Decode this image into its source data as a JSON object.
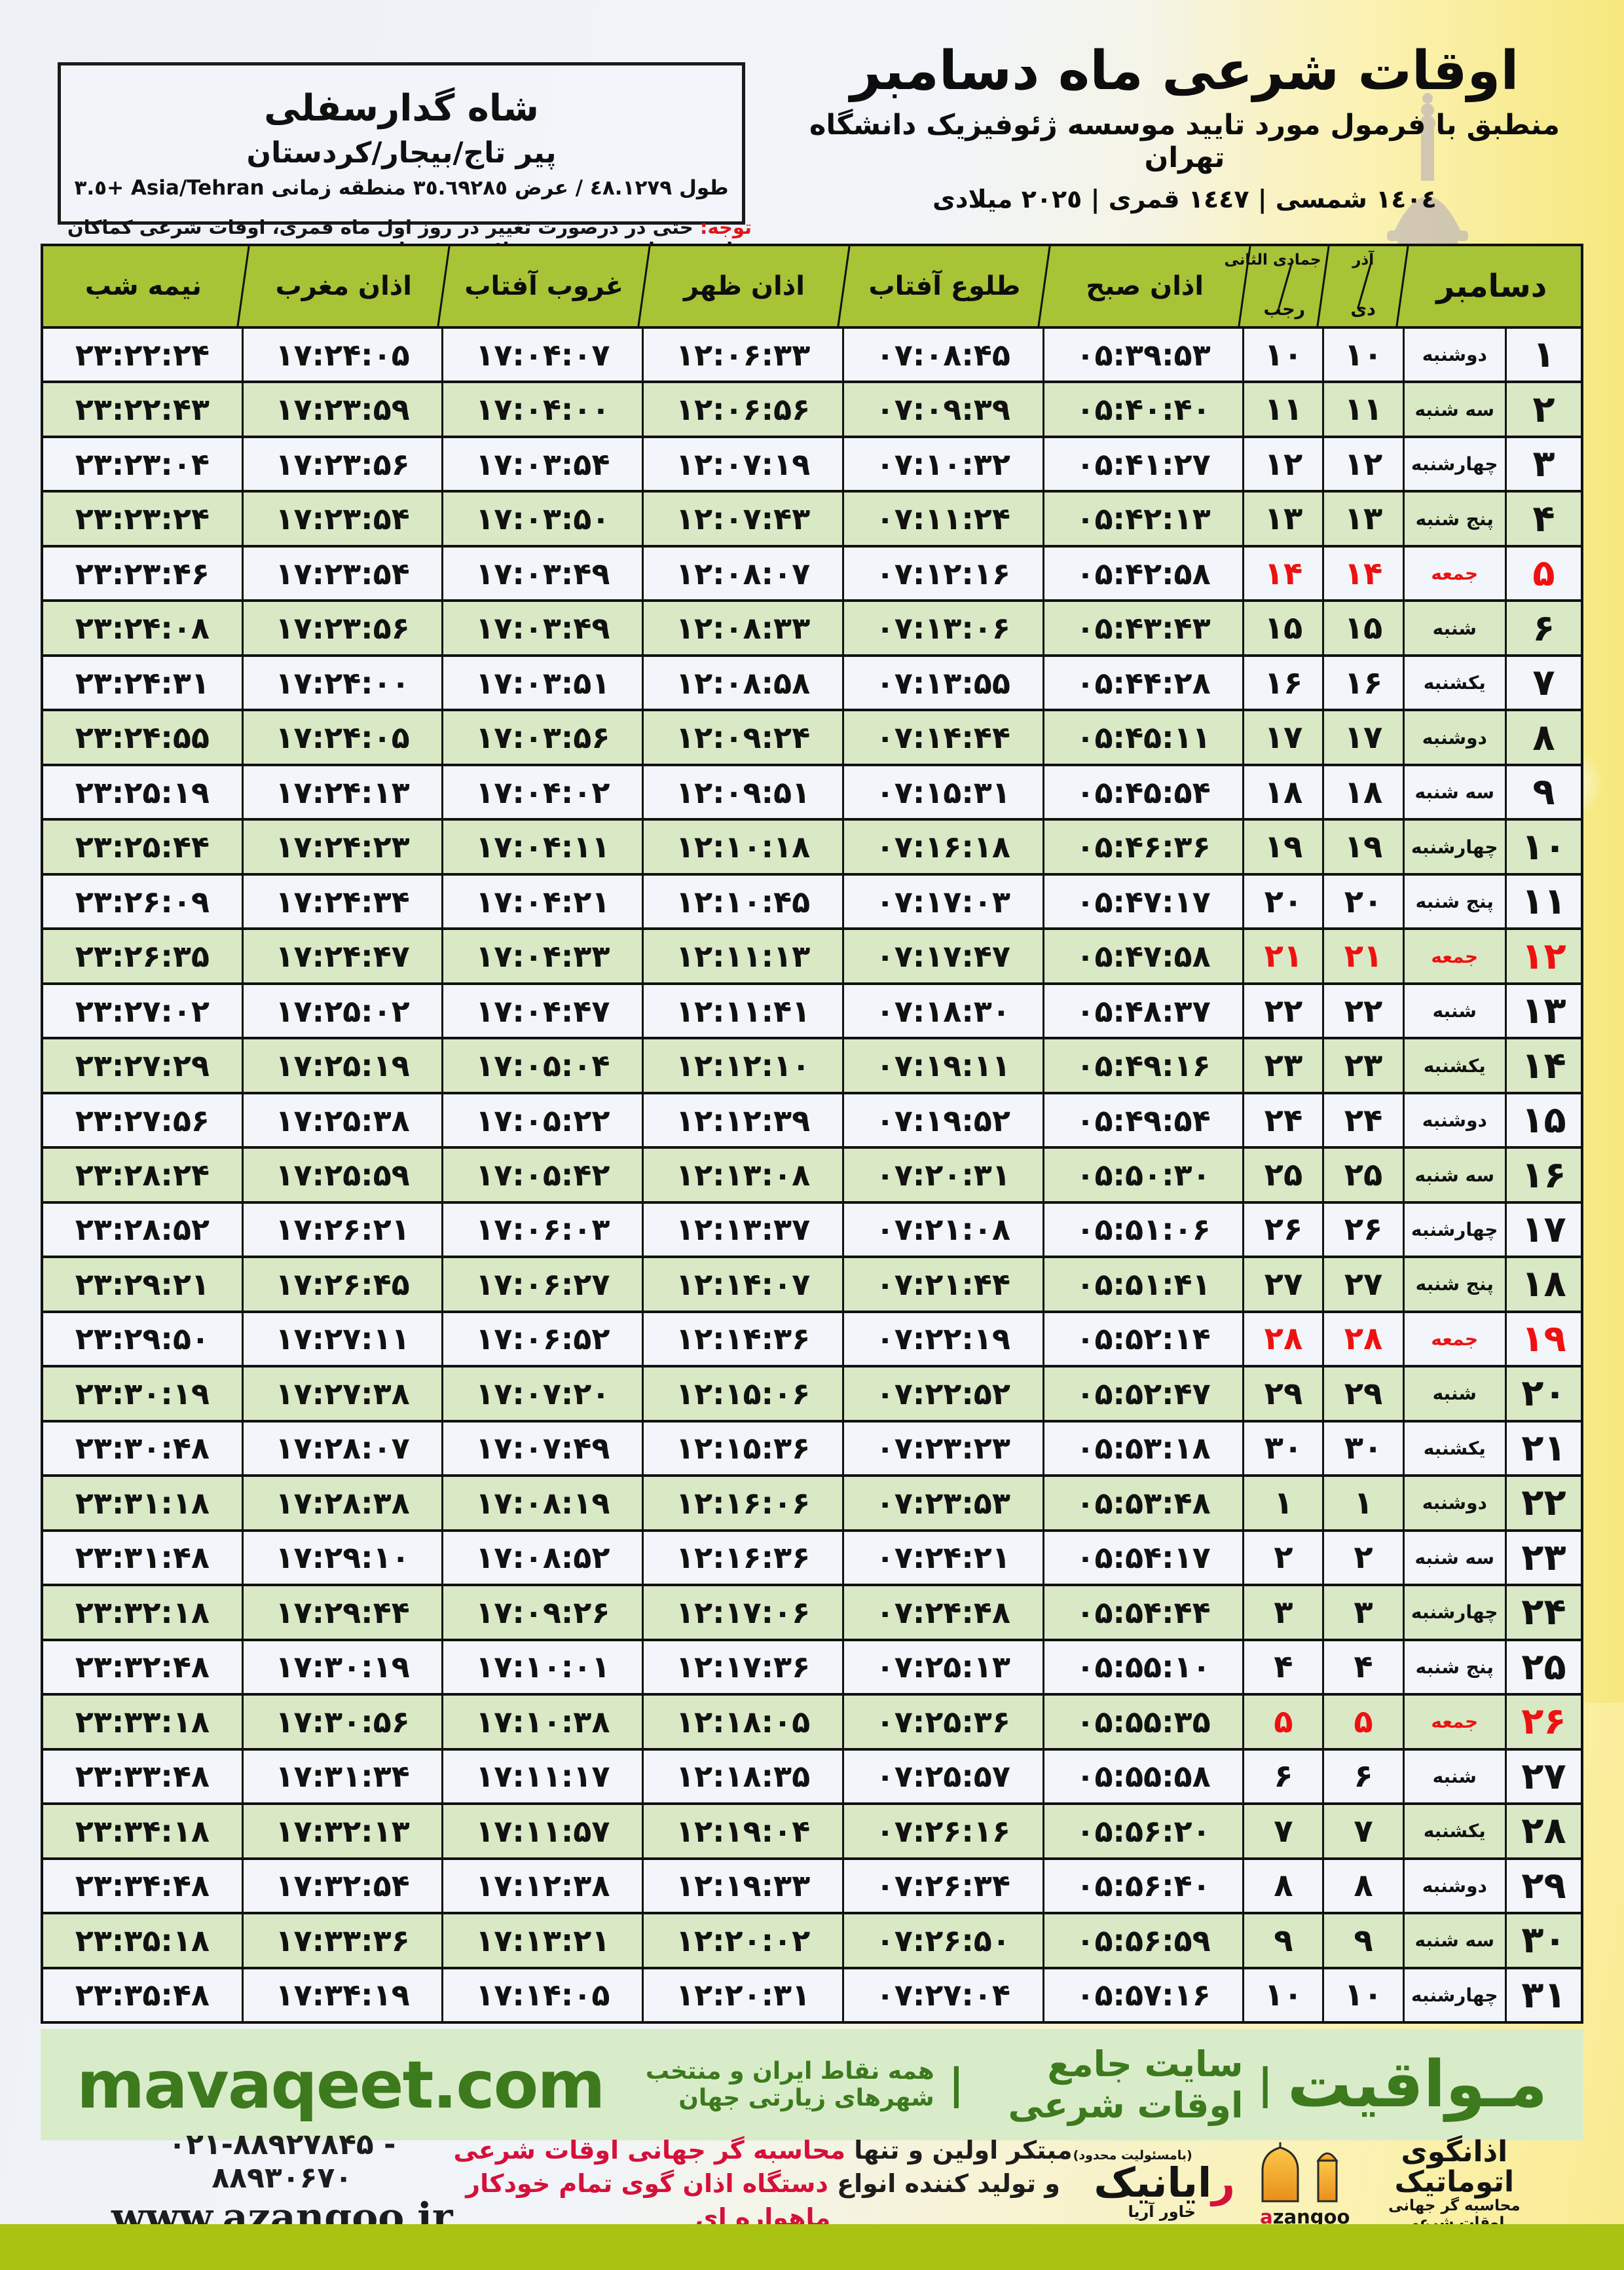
{
  "header": {
    "title": "اوقات شرعی ماه دسامبر",
    "subtitle": "منطبق با فرمول مورد تایید موسسه ژئوفیزیک دانشگاه تهران",
    "year_line": "١٤٠٤ شمسی | ١٤٤٧ قمری | ٢٠٢٥ میلادی",
    "location": {
      "name": "شاه گدارسفلی",
      "region": "پیر تاج/بیجار/کردستان",
      "coords": "طول ٤٨.١٢٧٩ / عرض ٣٥.٦٩٢٨٥ منطقه زمانی Asia/Tehran +٣.٥"
    },
    "notice_label": "توجه:",
    "notice": " حتی در درصورت تغییر در روز اول ماه قمری، اوقات شرعی کماکان برای روزهای شمسی و میلادی معتبر است."
  },
  "table": {
    "columns": {
      "midnight": "نیمه شب",
      "maghrib": "اذان مغرب",
      "sunset": "غروب آفتاب",
      "dhuhr": "اذان ظهر",
      "sunrise": "طلوع آفتاب",
      "fajr": "اذان صبح",
      "hijri_top": "جمادی الثانی",
      "hijri_bottom": "رجب",
      "persian_top": "آذر",
      "persian_bottom": "دی",
      "month": "دسامبر"
    },
    "rows": [
      {
        "day": 1,
        "weekday": "دوشنبه",
        "hijri_day": 10,
        "persian_day": 10,
        "fajr": "05:39:53",
        "sunrise": "07:08:45",
        "dhuhr": "12:06:33",
        "sunset": "17:04:07",
        "maghrib": "17:24:05",
        "midnight": "23:22:24",
        "friday": false
      },
      {
        "day": 2,
        "weekday": "سه شنبه",
        "hijri_day": 11,
        "persian_day": 11,
        "fajr": "05:40:40",
        "sunrise": "07:09:39",
        "dhuhr": "12:06:56",
        "sunset": "17:04:00",
        "maghrib": "17:23:59",
        "midnight": "23:22:43",
        "friday": false
      },
      {
        "day": 3,
        "weekday": "چهارشنبه",
        "hijri_day": 12,
        "persian_day": 12,
        "fajr": "05:41:27",
        "sunrise": "07:10:32",
        "dhuhr": "12:07:19",
        "sunset": "17:03:54",
        "maghrib": "17:23:56",
        "midnight": "23:23:04",
        "friday": false
      },
      {
        "day": 4,
        "weekday": "پنج شنبه",
        "hijri_day": 13,
        "persian_day": 13,
        "fajr": "05:42:13",
        "sunrise": "07:11:24",
        "dhuhr": "12:07:43",
        "sunset": "17:03:50",
        "maghrib": "17:23:54",
        "midnight": "23:23:24",
        "friday": false
      },
      {
        "day": 5,
        "weekday": "جمعه",
        "hijri_day": 14,
        "persian_day": 14,
        "fajr": "05:42:58",
        "sunrise": "07:12:16",
        "dhuhr": "12:08:07",
        "sunset": "17:03:49",
        "maghrib": "17:23:54",
        "midnight": "23:23:46",
        "friday": true
      },
      {
        "day": 6,
        "weekday": "شنبه",
        "hijri_day": 15,
        "persian_day": 15,
        "fajr": "05:43:43",
        "sunrise": "07:13:06",
        "dhuhr": "12:08:33",
        "sunset": "17:03:49",
        "maghrib": "17:23:56",
        "midnight": "23:24:08",
        "friday": false
      },
      {
        "day": 7,
        "weekday": "یکشنبه",
        "hijri_day": 16,
        "persian_day": 16,
        "fajr": "05:44:28",
        "sunrise": "07:13:55",
        "dhuhr": "12:08:58",
        "sunset": "17:03:51",
        "maghrib": "17:24:00",
        "midnight": "23:24:31",
        "friday": false
      },
      {
        "day": 8,
        "weekday": "دوشنبه",
        "hijri_day": 17,
        "persian_day": 17,
        "fajr": "05:45:11",
        "sunrise": "07:14:44",
        "dhuhr": "12:09:24",
        "sunset": "17:03:56",
        "maghrib": "17:24:05",
        "midnight": "23:24:55",
        "friday": false
      },
      {
        "day": 9,
        "weekday": "سه شنبه",
        "hijri_day": 18,
        "persian_day": 18,
        "fajr": "05:45:54",
        "sunrise": "07:15:31",
        "dhuhr": "12:09:51",
        "sunset": "17:04:02",
        "maghrib": "17:24:13",
        "midnight": "23:25:19",
        "friday": false
      },
      {
        "day": 10,
        "weekday": "چهارشنبه",
        "hijri_day": 19,
        "persian_day": 19,
        "fajr": "05:46:36",
        "sunrise": "07:16:18",
        "dhuhr": "12:10:18",
        "sunset": "17:04:11",
        "maghrib": "17:24:23",
        "midnight": "23:25:44",
        "friday": false
      },
      {
        "day": 11,
        "weekday": "پنج شنبه",
        "hijri_day": 20,
        "persian_day": 20,
        "fajr": "05:47:17",
        "sunrise": "07:17:03",
        "dhuhr": "12:10:45",
        "sunset": "17:04:21",
        "maghrib": "17:24:34",
        "midnight": "23:26:09",
        "friday": false
      },
      {
        "day": 12,
        "weekday": "جمعه",
        "hijri_day": 21,
        "persian_day": 21,
        "fajr": "05:47:58",
        "sunrise": "07:17:47",
        "dhuhr": "12:11:13",
        "sunset": "17:04:33",
        "maghrib": "17:24:47",
        "midnight": "23:26:35",
        "friday": true
      },
      {
        "day": 13,
        "weekday": "شنبه",
        "hijri_day": 22,
        "persian_day": 22,
        "fajr": "05:48:37",
        "sunrise": "07:18:30",
        "dhuhr": "12:11:41",
        "sunset": "17:04:47",
        "maghrib": "17:25:02",
        "midnight": "23:27:02",
        "friday": false
      },
      {
        "day": 14,
        "weekday": "یکشنبه",
        "hijri_day": 23,
        "persian_day": 23,
        "fajr": "05:49:16",
        "sunrise": "07:19:11",
        "dhuhr": "12:12:10",
        "sunset": "17:05:04",
        "maghrib": "17:25:19",
        "midnight": "23:27:29",
        "friday": false
      },
      {
        "day": 15,
        "weekday": "دوشنبه",
        "hijri_day": 24,
        "persian_day": 24,
        "fajr": "05:49:54",
        "sunrise": "07:19:52",
        "dhuhr": "12:12:39",
        "sunset": "17:05:22",
        "maghrib": "17:25:38",
        "midnight": "23:27:56",
        "friday": false
      },
      {
        "day": 16,
        "weekday": "سه شنبه",
        "hijri_day": 25,
        "persian_day": 25,
        "fajr": "05:50:30",
        "sunrise": "07:20:31",
        "dhuhr": "12:13:08",
        "sunset": "17:05:42",
        "maghrib": "17:25:59",
        "midnight": "23:28:24",
        "friday": false
      },
      {
        "day": 17,
        "weekday": "چهارشنبه",
        "hijri_day": 26,
        "persian_day": 26,
        "fajr": "05:51:06",
        "sunrise": "07:21:08",
        "dhuhr": "12:13:37",
        "sunset": "17:06:03",
        "maghrib": "17:26:21",
        "midnight": "23:28:52",
        "friday": false
      },
      {
        "day": 18,
        "weekday": "پنج شنبه",
        "hijri_day": 27,
        "persian_day": 27,
        "fajr": "05:51:41",
        "sunrise": "07:21:44",
        "dhuhr": "12:14:07",
        "sunset": "17:06:27",
        "maghrib": "17:26:45",
        "midnight": "23:29:21",
        "friday": false
      },
      {
        "day": 19,
        "weekday": "جمعه",
        "hijri_day": 28,
        "persian_day": 28,
        "fajr": "05:52:14",
        "sunrise": "07:22:19",
        "dhuhr": "12:14:36",
        "sunset": "17:06:52",
        "maghrib": "17:27:11",
        "midnight": "23:29:50",
        "friday": true
      },
      {
        "day": 20,
        "weekday": "شنبه",
        "hijri_day": 29,
        "persian_day": 29,
        "fajr": "05:52:47",
        "sunrise": "07:22:52",
        "dhuhr": "12:15:06",
        "sunset": "17:07:20",
        "maghrib": "17:27:38",
        "midnight": "23:30:19",
        "friday": false
      },
      {
        "day": 21,
        "weekday": "یکشنبه",
        "hijri_day": 30,
        "persian_day": 30,
        "fajr": "05:53:18",
        "sunrise": "07:23:23",
        "dhuhr": "12:15:36",
        "sunset": "17:07:49",
        "maghrib": "17:28:07",
        "midnight": "23:30:48",
        "friday": false
      },
      {
        "day": 22,
        "weekday": "دوشنبه",
        "hijri_day": 1,
        "persian_day": 1,
        "fajr": "05:53:48",
        "sunrise": "07:23:53",
        "dhuhr": "12:16:06",
        "sunset": "17:08:19",
        "maghrib": "17:28:38",
        "midnight": "23:31:18",
        "friday": false
      },
      {
        "day": 23,
        "weekday": "سه شنبه",
        "hijri_day": 2,
        "persian_day": 2,
        "fajr": "05:54:17",
        "sunrise": "07:24:21",
        "dhuhr": "12:16:36",
        "sunset": "17:08:52",
        "maghrib": "17:29:10",
        "midnight": "23:31:48",
        "friday": false
      },
      {
        "day": 24,
        "weekday": "چهارشنبه",
        "hijri_day": 3,
        "persian_day": 3,
        "fajr": "05:54:44",
        "sunrise": "07:24:48",
        "dhuhr": "12:17:06",
        "sunset": "17:09:26",
        "maghrib": "17:29:44",
        "midnight": "23:32:18",
        "friday": false
      },
      {
        "day": 25,
        "weekday": "پنج شنبه",
        "hijri_day": 4,
        "persian_day": 4,
        "fajr": "05:55:10",
        "sunrise": "07:25:13",
        "dhuhr": "12:17:36",
        "sunset": "17:10:01",
        "maghrib": "17:30:19",
        "midnight": "23:32:48",
        "friday": false
      },
      {
        "day": 26,
        "weekday": "جمعه",
        "hijri_day": 5,
        "persian_day": 5,
        "fajr": "05:55:35",
        "sunrise": "07:25:36",
        "dhuhr": "12:18:05",
        "sunset": "17:10:38",
        "maghrib": "17:30:56",
        "midnight": "23:33:18",
        "friday": true
      },
      {
        "day": 27,
        "weekday": "شنبه",
        "hijri_day": 6,
        "persian_day": 6,
        "fajr": "05:55:58",
        "sunrise": "07:25:57",
        "dhuhr": "12:18:35",
        "sunset": "17:11:17",
        "maghrib": "17:31:34",
        "midnight": "23:33:48",
        "friday": false
      },
      {
        "day": 28,
        "weekday": "یکشنبه",
        "hijri_day": 7,
        "persian_day": 7,
        "fajr": "05:56:20",
        "sunrise": "07:26:16",
        "dhuhr": "12:19:04",
        "sunset": "17:11:57",
        "maghrib": "17:32:13",
        "midnight": "23:34:18",
        "friday": false
      },
      {
        "day": 29,
        "weekday": "دوشنبه",
        "hijri_day": 8,
        "persian_day": 8,
        "fajr": "05:56:40",
        "sunrise": "07:26:34",
        "dhuhr": "12:19:33",
        "sunset": "17:12:38",
        "maghrib": "17:32:54",
        "midnight": "23:34:48",
        "friday": false
      },
      {
        "day": 30,
        "weekday": "سه شنبه",
        "hijri_day": 9,
        "persian_day": 9,
        "fajr": "05:56:59",
        "sunrise": "07:26:50",
        "dhuhr": "12:20:02",
        "sunset": "17:13:21",
        "maghrib": "17:33:36",
        "midnight": "23:35:18",
        "friday": false
      },
      {
        "day": 31,
        "weekday": "چهارشنبه",
        "hijri_day": 10,
        "persian_day": 10,
        "fajr": "05:57:16",
        "sunrise": "07:27:04",
        "dhuhr": "12:20:31",
        "sunset": "17:14:05",
        "maghrib": "17:34:19",
        "midnight": "23:35:48",
        "friday": false
      }
    ]
  },
  "mavaqeet": {
    "domain": "mavaqeet.com",
    "brand": "مـواقیت",
    "sep": "|",
    "text1": "سایت جامع اوقات شرعی",
    "text2": "همه نقاط ایران و منتخب شهرهای زیارتی جهان"
  },
  "footer": {
    "phones": "۰۲۱-۸۸۹۲۷۸۴۵ - ۸۸۹۳۰۶۷۰",
    "site_url": "www.azangoo.ir",
    "tagline1_black": "مبتکر اولین و تنها ",
    "tagline1_red": "محاسبه گر جهانی اوقات شرعی",
    "tagline2_black": "و تولید کننده انواع ",
    "tagline2_red": "دستگاه اذان گوی تمام خودکار ماهواره ای",
    "rayanik_note": "(بامسئولیت محدود)",
    "rayanik_first": "ر",
    "rayanik_rest": "ایانیک",
    "rayanik_sub": "خاور آریا",
    "azangoo_line1": "اذانگوی اتوماتیک",
    "azangoo_line2": "محاسبه گر جهانی اوقات شرعی",
    "azangoo_latin_a": "a",
    "azangoo_latin_rest": "zangoo"
  },
  "colors": {
    "header_green": "#a7c336",
    "row_green": "#d9e9c5",
    "row_white": "#f2f5f9",
    "friday_red": "#ee1111",
    "notice_red": "#e41317",
    "footer_green_bg": "#d9ecca",
    "footer_green_text": "#3c7a1d",
    "bottom_strip": "#a9c313",
    "azangoo_orange": "#f2a227"
  }
}
